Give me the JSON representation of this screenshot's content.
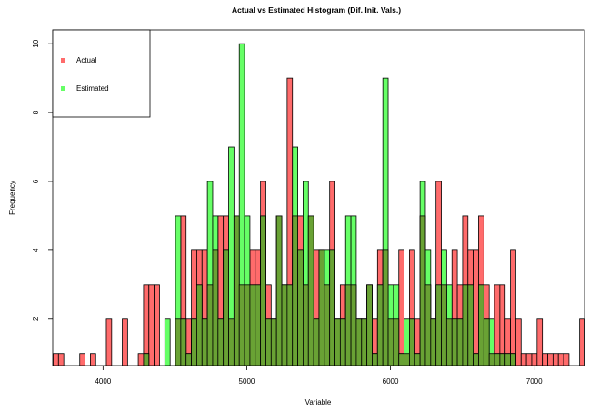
{
  "chart_data": {
    "type": "bar",
    "title": "Actual vs Estimated Histogram (Dif. Init. Vals.)",
    "xlabel": "Variable",
    "ylabel": "Frequency",
    "xlim": [
      3650,
      7350
    ],
    "ylim": [
      0.65,
      10.4
    ],
    "x_ticks": [
      4000,
      5000,
      6000,
      7000
    ],
    "y_ticks": [
      2,
      4,
      6,
      8,
      10
    ],
    "bin_width": 37,
    "grid": false,
    "legend_position": "top-left",
    "colors": {
      "actual": "#ff6b6b",
      "estimated": "#66ff66",
      "overlap": "#69a234",
      "border": "#000000"
    },
    "series": [
      {
        "name": "Actual",
        "x": [
          3653,
          3690,
          3838,
          3912,
          4023,
          4134,
          4245,
          4282,
          4319,
          4356,
          4504,
          4541,
          4578,
          4615,
          4652,
          4689,
          4726,
          4763,
          4800,
          4837,
          4874,
          4911,
          4948,
          4985,
          5022,
          5059,
          5096,
          5133,
          5170,
          5207,
          5244,
          5281,
          5318,
          5355,
          5392,
          5429,
          5466,
          5503,
          5540,
          5577,
          5614,
          5651,
          5688,
          5725,
          5762,
          5799,
          5836,
          5873,
          5910,
          5947,
          5984,
          6021,
          6058,
          6095,
          6132,
          6169,
          6206,
          6243,
          6280,
          6317,
          6354,
          6391,
          6428,
          6465,
          6502,
          6539,
          6576,
          6613,
          6650,
          6687,
          6724,
          6761,
          6798,
          6835,
          6872,
          6909,
          6946,
          6983,
          7020,
          7057,
          7094,
          7131,
          7168,
          7205,
          7316
        ],
        "values": [
          1,
          1,
          1,
          1,
          2,
          2,
          1,
          3,
          3,
          3,
          2,
          5,
          2,
          4,
          4,
          4,
          3,
          4,
          5,
          5,
          2,
          5,
          3,
          3,
          4,
          4,
          6,
          3,
          2,
          5,
          3,
          9,
          5,
          5,
          3,
          5,
          4,
          4,
          3,
          6,
          2,
          3,
          3,
          3,
          2,
          2,
          3,
          2,
          4,
          4,
          2,
          2,
          4,
          1,
          4,
          2,
          5,
          3,
          2,
          6,
          3,
          2,
          4,
          3,
          5,
          4,
          4,
          5,
          3,
          1,
          3,
          3,
          2,
          4,
          2,
          1,
          1,
          1,
          2,
          1,
          1,
          1,
          1,
          1,
          2
        ]
      },
      {
        "name": "Estimated",
        "x": [
          4282,
          4430,
          4504,
          4541,
          4578,
          4615,
          4652,
          4689,
          4726,
          4763,
          4800,
          4837,
          4874,
          4911,
          4948,
          4985,
          5022,
          5059,
          5096,
          5133,
          5170,
          5207,
          5244,
          5281,
          5318,
          5355,
          5392,
          5429,
          5466,
          5503,
          5540,
          5577,
          5614,
          5651,
          5688,
          5725,
          5762,
          5799,
          5836,
          5873,
          5910,
          5947,
          5984,
          6021,
          6058,
          6095,
          6132,
          6169,
          6206,
          6243,
          6280,
          6317,
          6354,
          6391,
          6428,
          6465,
          6502,
          6539,
          6576,
          6613,
          6650,
          6687,
          6724,
          6761,
          6798,
          6835
        ],
        "values": [
          1,
          2,
          5,
          2,
          1,
          2,
          3,
          2,
          6,
          5,
          2,
          4,
          7,
          5,
          10,
          5,
          3,
          3,
          5,
          2,
          2,
          5,
          3,
          3,
          7,
          4,
          6,
          5,
          2,
          4,
          4,
          4,
          2,
          2,
          5,
          5,
          2,
          2,
          3,
          1,
          3,
          9,
          3,
          3,
          1,
          2,
          2,
          1,
          6,
          4,
          2,
          3,
          4,
          3,
          2,
          2,
          3,
          3,
          1,
          3,
          2,
          2,
          1,
          1,
          1,
          1
        ]
      }
    ]
  }
}
